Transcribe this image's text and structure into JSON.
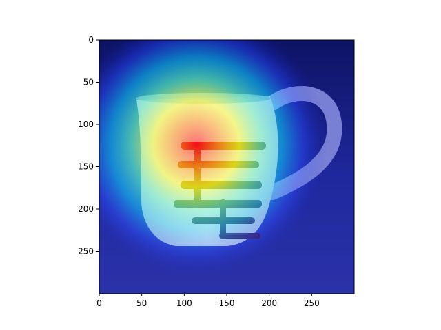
{
  "figure": {
    "background_color": "#ffffff",
    "colormap": "jet",
    "overlay_description_visible": false
  },
  "axes": {
    "x_ticks": [
      "0",
      "50",
      "100",
      "150",
      "200",
      "250"
    ],
    "y_ticks": [
      "0",
      "50",
      "100",
      "150",
      "200",
      "250"
    ],
    "x_tick_values": [
      0,
      50,
      100,
      150,
      200,
      250
    ],
    "y_tick_values": [
      0,
      50,
      100,
      150,
      200,
      250
    ],
    "x_range": [
      0,
      299
    ],
    "y_range": [
      0,
      299
    ],
    "y_inverted": true,
    "grid": false
  },
  "colors": {
    "jet_blue_dark": "#00007f",
    "jet_blue": "#0000ff",
    "jet_cyan": "#00ffff",
    "jet_yellow": "#ffff00",
    "jet_red": "#ff0000",
    "jet_red_dark": "#7f0000",
    "mug_glaze": "#b9c4d6",
    "brush_stroke": "#3a1a2e"
  },
  "image": {
    "subject_icon": "mug-icon"
  }
}
